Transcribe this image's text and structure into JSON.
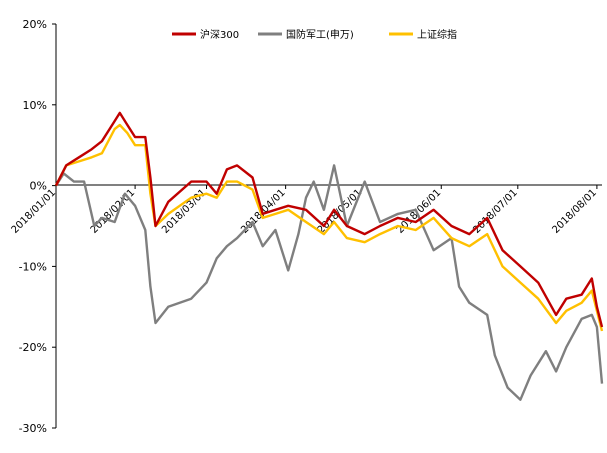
{
  "chart_data": {
    "type": "line",
    "title": "",
    "xlabel": "",
    "ylabel": "",
    "ylim": [
      -30,
      20
    ],
    "y_ticks": [
      "20%",
      "10%",
      "0%",
      "-10%",
      "-20%",
      "-30%"
    ],
    "x_tick_labels": [
      "2018/01/01",
      "2018/02/01",
      "2018/03/01",
      "2018/04/01",
      "2018/05/01",
      "2018/06/01",
      "2018/07/01",
      "2018/08/01"
    ],
    "x_range": [
      "2018/01/01",
      "2018/08/03"
    ],
    "grid": false,
    "legend_position": "top",
    "series": [
      {
        "name": "沪深300",
        "color": "#C00000",
        "points": [
          [
            "2018/01/01",
            0
          ],
          [
            "2018/01/05",
            2.5
          ],
          [
            "2018/01/10",
            3.5
          ],
          [
            "2018/01/15",
            4.5
          ],
          [
            "2018/01/19",
            5.5
          ],
          [
            "2018/01/24",
            8.0
          ],
          [
            "2018/01/26",
            9.0
          ],
          [
            "2018/01/29",
            7.5
          ],
          [
            "2018/02/01",
            6.0
          ],
          [
            "2018/02/05",
            6.0
          ],
          [
            "2018/02/07",
            1.0
          ],
          [
            "2018/02/09",
            -5.0
          ],
          [
            "2018/02/14",
            -2.0
          ],
          [
            "2018/02/23",
            0.5
          ],
          [
            "2018/03/01",
            0.5
          ],
          [
            "2018/03/05",
            -1.0
          ],
          [
            "2018/03/09",
            2.0
          ],
          [
            "2018/03/13",
            2.5
          ],
          [
            "2018/03/19",
            1.0
          ],
          [
            "2018/03/23",
            -3.5
          ],
          [
            "2018/03/28",
            -3.0
          ],
          [
            "2018/04/02",
            -2.5
          ],
          [
            "2018/04/09",
            -3.0
          ],
          [
            "2018/04/16",
            -5.0
          ],
          [
            "2018/04/20",
            -3.0
          ],
          [
            "2018/04/25",
            -5.0
          ],
          [
            "2018/05/02",
            -6.0
          ],
          [
            "2018/05/08",
            -5.0
          ],
          [
            "2018/05/15",
            -4.0
          ],
          [
            "2018/05/22",
            -4.5
          ],
          [
            "2018/05/29",
            -3.0
          ],
          [
            "2018/06/05",
            -5.0
          ],
          [
            "2018/06/12",
            -6.0
          ],
          [
            "2018/06/19",
            -4.0
          ],
          [
            "2018/06/25",
            -8.0
          ],
          [
            "2018/07/02",
            -10.0
          ],
          [
            "2018/07/09",
            -12.0
          ],
          [
            "2018/07/16",
            -16.0
          ],
          [
            "2018/07/20",
            -14.0
          ],
          [
            "2018/07/26",
            -13.5
          ],
          [
            "2018/07/30",
            -11.5
          ],
          [
            "2018/08/01",
            -15.0
          ],
          [
            "2018/08/03",
            -17.5
          ]
        ]
      },
      {
        "name": "国防军工(申万)",
        "color": "#7F7F7F",
        "points": [
          [
            "2018/01/01",
            0
          ],
          [
            "2018/01/04",
            1.5
          ],
          [
            "2018/01/08",
            0.5
          ],
          [
            "2018/01/12",
            0.5
          ],
          [
            "2018/01/16",
            -5.0
          ],
          [
            "2018/01/19",
            -4.0
          ],
          [
            "2018/01/24",
            -4.5
          ],
          [
            "2018/01/28",
            -1.0
          ],
          [
            "2018/02/01",
            -2.5
          ],
          [
            "2018/02/05",
            -5.5
          ],
          [
            "2018/02/07",
            -12.5
          ],
          [
            "2018/02/09",
            -17.0
          ],
          [
            "2018/02/14",
            -15.0
          ],
          [
            "2018/02/23",
            -14.0
          ],
          [
            "2018/03/01",
            -12.0
          ],
          [
            "2018/03/05",
            -9.0
          ],
          [
            "2018/03/09",
            -7.5
          ],
          [
            "2018/03/13",
            -6.5
          ],
          [
            "2018/03/19",
            -4.5
          ],
          [
            "2018/03/23",
            -7.5
          ],
          [
            "2018/03/28",
            -5.5
          ],
          [
            "2018/04/02",
            -10.5
          ],
          [
            "2018/04/06",
            -6.0
          ],
          [
            "2018/04/09",
            -1.5
          ],
          [
            "2018/04/12",
            0.5
          ],
          [
            "2018/04/16",
            -3.0
          ],
          [
            "2018/04/20",
            2.5
          ],
          [
            "2018/04/25",
            -5.0
          ],
          [
            "2018/05/02",
            0.5
          ],
          [
            "2018/05/08",
            -4.5
          ],
          [
            "2018/05/15",
            -3.5
          ],
          [
            "2018/05/22",
            -3.0
          ],
          [
            "2018/05/29",
            -8.0
          ],
          [
            "2018/06/05",
            -6.5
          ],
          [
            "2018/06/08",
            -12.5
          ],
          [
            "2018/06/12",
            -14.5
          ],
          [
            "2018/06/19",
            -16.0
          ],
          [
            "2018/06/22",
            -21.0
          ],
          [
            "2018/06/27",
            -25.0
          ],
          [
            "2018/07/02",
            -26.5
          ],
          [
            "2018/07/06",
            -23.5
          ],
          [
            "2018/07/12",
            -20.5
          ],
          [
            "2018/07/16",
            -23.0
          ],
          [
            "2018/07/20",
            -20.0
          ],
          [
            "2018/07/26",
            -16.5
          ],
          [
            "2018/07/30",
            -16.0
          ],
          [
            "2018/08/01",
            -17.5
          ],
          [
            "2018/08/03",
            -24.5
          ]
        ]
      },
      {
        "name": "上证综指",
        "color": "#FFC000",
        "points": [
          [
            "2018/01/01",
            0
          ],
          [
            "2018/01/05",
            2.5
          ],
          [
            "2018/01/10",
            3.0
          ],
          [
            "2018/01/15",
            3.5
          ],
          [
            "2018/01/19",
            4.0
          ],
          [
            "2018/01/24",
            7.0
          ],
          [
            "2018/01/26",
            7.5
          ],
          [
            "2018/01/29",
            6.5
          ],
          [
            "2018/02/01",
            5.0
          ],
          [
            "2018/02/05",
            5.0
          ],
          [
            "2018/02/07",
            -1.0
          ],
          [
            "2018/02/09",
            -5.0
          ],
          [
            "2018/02/14",
            -3.5
          ],
          [
            "2018/02/23",
            -1.5
          ],
          [
            "2018/03/01",
            -1.0
          ],
          [
            "2018/03/05",
            -1.5
          ],
          [
            "2018/03/09",
            0.5
          ],
          [
            "2018/03/13",
            0.5
          ],
          [
            "2018/03/19",
            -0.5
          ],
          [
            "2018/03/23",
            -4.0
          ],
          [
            "2018/03/28",
            -3.5
          ],
          [
            "2018/04/02",
            -3.0
          ],
          [
            "2018/04/09",
            -4.5
          ],
          [
            "2018/04/16",
            -6.0
          ],
          [
            "2018/04/20",
            -4.5
          ],
          [
            "2018/04/25",
            -6.5
          ],
          [
            "2018/05/02",
            -7.0
          ],
          [
            "2018/05/08",
            -6.0
          ],
          [
            "2018/05/15",
            -5.0
          ],
          [
            "2018/05/22",
            -5.5
          ],
          [
            "2018/05/29",
            -4.0
          ],
          [
            "2018/06/05",
            -6.5
          ],
          [
            "2018/06/12",
            -7.5
          ],
          [
            "2018/06/19",
            -6.0
          ],
          [
            "2018/06/25",
            -10.0
          ],
          [
            "2018/07/02",
            -12.0
          ],
          [
            "2018/07/09",
            -14.0
          ],
          [
            "2018/07/16",
            -17.0
          ],
          [
            "2018/07/20",
            -15.5
          ],
          [
            "2018/07/26",
            -14.5
          ],
          [
            "2018/07/30",
            -13.0
          ],
          [
            "2018/08/01",
            -15.5
          ],
          [
            "2018/08/03",
            -18.0
          ]
        ]
      }
    ]
  }
}
